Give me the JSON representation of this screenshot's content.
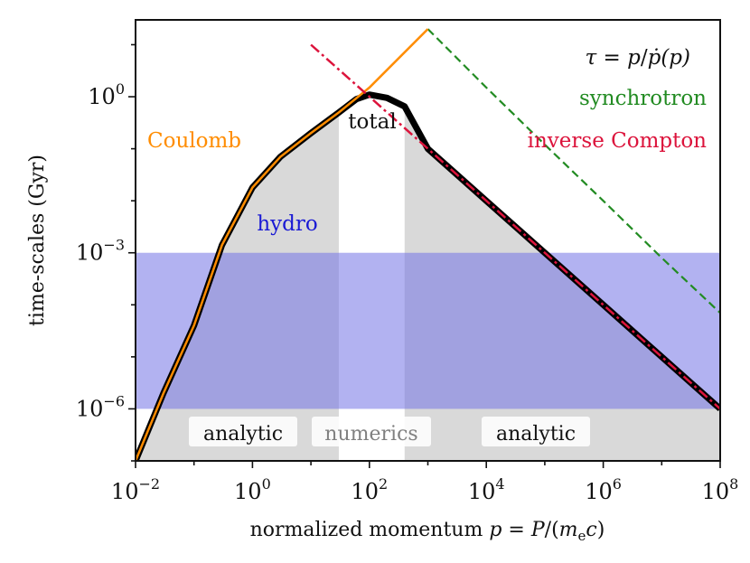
{
  "chart_data": {
    "type": "line",
    "xscale": "log",
    "yscale": "log",
    "xlim": [
      0.01,
      100000000
    ],
    "ylim": [
      1e-07,
      30
    ],
    "xlabel": {
      "prefix": "normalized momentum ",
      "p": "p",
      "eq": " = ",
      "P": "P",
      "open": "/(",
      "m": "m",
      "sub": "e",
      "c": "c",
      "close": ")"
    },
    "ylabel": "time-scales (Gyr)",
    "x_ticks": [
      {
        "base": "10",
        "exp": "−2",
        "value": 0.01
      },
      {
        "base": "10",
        "exp": "0",
        "value": 1
      },
      {
        "base": "10",
        "exp": "2",
        "value": 100
      },
      {
        "base": "10",
        "exp": "4",
        "value": 10000
      },
      {
        "base": "10",
        "exp": "6",
        "value": 1000000
      },
      {
        "base": "10",
        "exp": "8",
        "value": 100000000
      }
    ],
    "y_ticks": [
      {
        "base": "10",
        "exp": "−6",
        "value": 1e-06
      },
      {
        "base": "10",
        "exp": "−3",
        "value": 0.001
      },
      {
        "base": "10",
        "exp": "0",
        "value": 1
      }
    ],
    "formula": {
      "tau": "τ",
      "eq": " = ",
      "p": "p",
      "slash": "/",
      "pdot": "ṗ",
      "arg": "(p)"
    },
    "series": [
      {
        "name": "Coulomb",
        "color": "#ff8c00",
        "style": "solid",
        "x": [
          0.01,
          0.03,
          0.1,
          0.3,
          1,
          3,
          10,
          30,
          100,
          1000
        ],
        "y": [
          1e-07,
          2e-06,
          4e-05,
          0.0014,
          0.018,
          0.07,
          0.2,
          0.5,
          1.5,
          20
        ]
      },
      {
        "name": "inverse Compton",
        "color": "#dc143c",
        "style": "dashdot",
        "x": [
          10,
          100,
          1000,
          10000,
          100000,
          1000000,
          10000000,
          100000000
        ],
        "y": [
          10,
          1,
          0.1,
          0.01,
          0.001,
          0.0001,
          1e-05,
          1e-06
        ]
      },
      {
        "name": "synchrotron",
        "color": "#228b22",
        "style": "dashed",
        "x": [
          1000,
          10000,
          100000,
          1000000,
          10000000,
          100000000
        ],
        "y": [
          20,
          1.5,
          0.12,
          0.01,
          0.0008,
          7e-05
        ]
      },
      {
        "name": "total",
        "color": "#000000",
        "style": "solid",
        "x": [
          0.01,
          0.03,
          0.1,
          0.3,
          1,
          3,
          10,
          30,
          60,
          100,
          200,
          400,
          1000,
          10000,
          100000,
          1000000,
          10000000,
          100000000
        ],
        "y": [
          1e-07,
          2e-06,
          4e-05,
          0.0014,
          0.018,
          0.07,
          0.2,
          0.5,
          0.9,
          1.1,
          0.95,
          0.65,
          0.1,
          0.01,
          0.001,
          0.0001,
          1e-05,
          1e-06
        ]
      }
    ],
    "bands": {
      "hydro": {
        "label": "hydro",
        "ymin": 1e-06,
        "ymax": 0.001,
        "color": "#7373e6"
      },
      "analytic_left": {
        "label": "analytic",
        "xmin": 0.01,
        "xmax": 30
      },
      "numerics": {
        "label": "numerics",
        "xmin": 30,
        "xmax": 400
      },
      "analytic_right": {
        "label": "analytic",
        "xmin": 400,
        "xmax": 100000000
      }
    },
    "legend": "none",
    "grid": false
  }
}
